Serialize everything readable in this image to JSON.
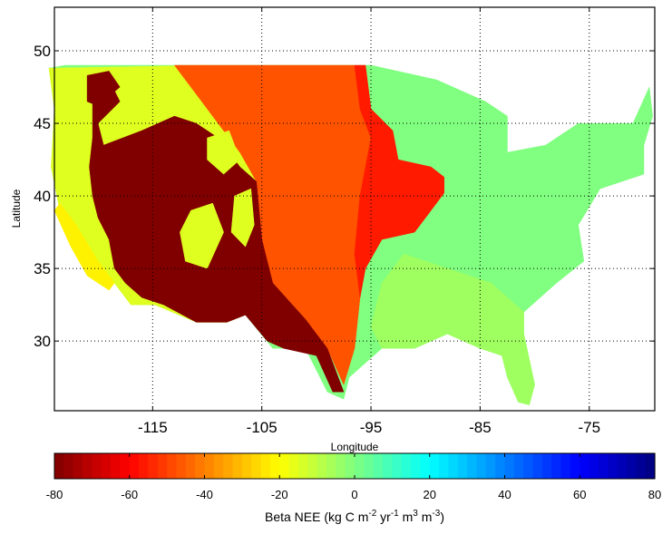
{
  "chart_data": {
    "type": "heatmap",
    "title": "",
    "xlabel": "Longitude",
    "ylabel": "Latitude",
    "xlim": [
      -124,
      -69
    ],
    "ylim": [
      25.2,
      53
    ],
    "xticks": [
      -115,
      -105,
      -95,
      -85,
      -75
    ],
    "xtick_labels": [
      "-115",
      "-105",
      "-95",
      "-85",
      "-75"
    ],
    "yticks": [
      30,
      35,
      40,
      45,
      50
    ],
    "ytick_labels": [
      "30",
      "35",
      "40",
      "45",
      "50"
    ],
    "grid": true,
    "colorbar": {
      "label_main": "Beta NEE (kg C m",
      "sup1": "-2",
      "mid1": " yr",
      "sup2": "-1",
      "mid2": " m",
      "sup3": "3",
      "mid3": " m",
      "sup4": "-3",
      "end": ")",
      "range": [
        -80,
        80
      ],
      "ticks": [
        -80,
        -60,
        -40,
        -20,
        0,
        20,
        40,
        60,
        80
      ],
      "tick_labels": [
        "-80",
        "-60",
        "-40",
        "-20",
        "0",
        "20",
        "40",
        "60",
        "80"
      ],
      "colormap": "jet-reversed",
      "levels": 64,
      "placement": "bottom"
    },
    "regions": [
      {
        "name": "us-conus",
        "value": 0,
        "points": [
          [
            -124.5,
            48.8
          ],
          [
            -123,
            49
          ],
          [
            -95,
            49
          ],
          [
            -89,
            48
          ],
          [
            -84.5,
            46.5
          ],
          [
            -82.5,
            45.5
          ],
          [
            -82.5,
            43
          ],
          [
            -79,
            43.5
          ],
          [
            -76,
            45
          ],
          [
            -71,
            45
          ],
          [
            -69.5,
            47.5
          ],
          [
            -69.2,
            45.5
          ],
          [
            -70,
            43.5
          ],
          [
            -70,
            41.5
          ],
          [
            -74,
            40.5
          ],
          [
            -76,
            38
          ],
          [
            -75.5,
            35.5
          ],
          [
            -78,
            34
          ],
          [
            -81,
            32
          ],
          [
            -81,
            30.5
          ],
          [
            -80,
            27
          ],
          [
            -80.5,
            25.6
          ],
          [
            -81.5,
            25.8
          ],
          [
            -82.5,
            27.5
          ],
          [
            -83,
            29
          ],
          [
            -85,
            29.5
          ],
          [
            -88,
            30.5
          ],
          [
            -89.5,
            30
          ],
          [
            -91,
            29.5
          ],
          [
            -94,
            29.5
          ],
          [
            -97,
            27.5
          ],
          [
            -97.5,
            26
          ],
          [
            -99,
            26.5
          ],
          [
            -101,
            29.5
          ],
          [
            -104,
            29.5
          ],
          [
            -106.5,
            31.8
          ],
          [
            -108.2,
            31.3
          ],
          [
            -111,
            31.3
          ],
          [
            -114.8,
            32.5
          ],
          [
            -117,
            32.5
          ],
          [
            -118.5,
            34
          ],
          [
            -120.5,
            34.5
          ],
          [
            -122,
            37
          ],
          [
            -123.5,
            39
          ],
          [
            -124.3,
            42
          ],
          [
            -124,
            46
          ]
        ]
      },
      {
        "name": "southeast",
        "value": -5,
        "points": [
          [
            -92,
            36
          ],
          [
            -88,
            35
          ],
          [
            -84,
            34
          ],
          [
            -81,
            32
          ],
          [
            -81,
            30.5
          ],
          [
            -80,
            27
          ],
          [
            -80.5,
            25.6
          ],
          [
            -81.5,
            25.8
          ],
          [
            -82.5,
            27.5
          ],
          [
            -83,
            29
          ],
          [
            -85,
            29.5
          ],
          [
            -88,
            30.5
          ],
          [
            -89.5,
            30
          ],
          [
            -91,
            29.5
          ],
          [
            -94,
            29.5
          ],
          [
            -95,
            31
          ],
          [
            -94,
            34
          ]
        ]
      },
      {
        "name": "west",
        "value": -15,
        "points": [
          [
            -124.5,
            48.8
          ],
          [
            -110,
            49
          ],
          [
            -108,
            46
          ],
          [
            -105.5,
            43
          ],
          [
            -104.5,
            38
          ],
          [
            -104,
            34
          ],
          [
            -106.5,
            31.8
          ],
          [
            -108.2,
            31.3
          ],
          [
            -111,
            31.3
          ],
          [
            -114.8,
            32.5
          ],
          [
            -117,
            32.5
          ],
          [
            -118.5,
            34
          ],
          [
            -120.5,
            34.5
          ],
          [
            -122,
            37
          ],
          [
            -123.5,
            39
          ],
          [
            -124.3,
            42
          ],
          [
            -124,
            46
          ]
        ]
      },
      {
        "name": "coast-yellow",
        "value": -22,
        "points": [
          [
            -123.5,
            39.5
          ],
          [
            -122,
            38
          ],
          [
            -120,
            35.5
          ],
          [
            -118.5,
            34
          ],
          [
            -119,
            33.5
          ],
          [
            -121,
            34.5
          ],
          [
            -122.5,
            36.5
          ],
          [
            -124,
            39
          ]
        ]
      },
      {
        "name": "plains",
        "value": -47,
        "points": [
          [
            -113,
            49
          ],
          [
            -96.5,
            49
          ],
          [
            -96,
            46
          ],
          [
            -95,
            44
          ],
          [
            -96,
            40
          ],
          [
            -95.5,
            36
          ],
          [
            -96,
            33
          ],
          [
            -96.5,
            29.5
          ],
          [
            -97.5,
            27
          ],
          [
            -99,
            29.5
          ],
          [
            -101,
            31.5
          ],
          [
            -104,
            34
          ],
          [
            -105,
            37
          ],
          [
            -105.5,
            41
          ],
          [
            -107,
            43
          ],
          [
            -109,
            45
          ],
          [
            -111,
            47
          ]
        ]
      },
      {
        "name": "midwest-red",
        "value": -56,
        "points": [
          [
            -96.5,
            49
          ],
          [
            -95.5,
            49
          ],
          [
            -95,
            46
          ],
          [
            -93,
            44.5
          ],
          [
            -92.5,
            42.5
          ],
          [
            -89.5,
            42
          ],
          [
            -88.3,
            41.3
          ],
          [
            -88.3,
            40.2
          ],
          [
            -89.5,
            39
          ],
          [
            -91,
            37.5
          ],
          [
            -94,
            37
          ],
          [
            -95.5,
            35
          ],
          [
            -96,
            33
          ],
          [
            -96.5,
            36
          ],
          [
            -96,
            40
          ],
          [
            -95,
            44
          ],
          [
            -96,
            46
          ]
        ]
      },
      {
        "name": "great-basin",
        "value": -80,
        "points": [
          [
            -120.5,
            47.5
          ],
          [
            -119,
            48
          ],
          [
            -118,
            46.5
          ],
          [
            -120,
            45
          ],
          [
            -119.5,
            43.5
          ],
          [
            -116,
            44.5
          ],
          [
            -113,
            45.5
          ],
          [
            -111,
            45
          ],
          [
            -109,
            44
          ],
          [
            -107,
            42
          ],
          [
            -105.5,
            41
          ],
          [
            -105,
            37
          ],
          [
            -104,
            34
          ],
          [
            -101,
            31.5
          ],
          [
            -99,
            29.5
          ],
          [
            -97.5,
            26.5
          ],
          [
            -98.5,
            26.5
          ],
          [
            -100,
            29
          ],
          [
            -103,
            29.5
          ],
          [
            -104.5,
            30
          ],
          [
            -106.5,
            31.8
          ],
          [
            -108.2,
            31.3
          ],
          [
            -111,
            31.3
          ],
          [
            -114,
            32.5
          ],
          [
            -116,
            33
          ],
          [
            -117.5,
            34
          ],
          [
            -118.5,
            35
          ],
          [
            -119,
            37
          ],
          [
            -120,
            38.5
          ],
          [
            -120.5,
            40
          ],
          [
            -120.8,
            42
          ],
          [
            -120.5,
            44
          ]
        ]
      },
      {
        "name": "ne-dark-patch",
        "value": -80,
        "points": [
          [
            -121,
            48.3
          ],
          [
            -119,
            48.6
          ],
          [
            -118,
            47.5
          ],
          [
            -120,
            46.2
          ],
          [
            -121,
            46.5
          ]
        ]
      },
      {
        "name": "utah-patch",
        "value": -15,
        "points": [
          [
            -111.5,
            39
          ],
          [
            -109.5,
            39.5
          ],
          [
            -108.5,
            37.5
          ],
          [
            -110,
            35
          ],
          [
            -112,
            35.5
          ],
          [
            -112.5,
            37.5
          ]
        ]
      },
      {
        "name": "wyoming-patch",
        "value": -15,
        "points": [
          [
            -110,
            44
          ],
          [
            -108,
            44.5
          ],
          [
            -107,
            42.5
          ],
          [
            -108.5,
            41.5
          ],
          [
            -110,
            42.5
          ]
        ]
      },
      {
        "name": "colorado-patch",
        "value": -15,
        "points": [
          [
            -107.5,
            40
          ],
          [
            -106,
            40.5
          ],
          [
            -105.7,
            38
          ],
          [
            -106.5,
            36.5
          ],
          [
            -107.8,
            37.5
          ]
        ]
      }
    ]
  }
}
